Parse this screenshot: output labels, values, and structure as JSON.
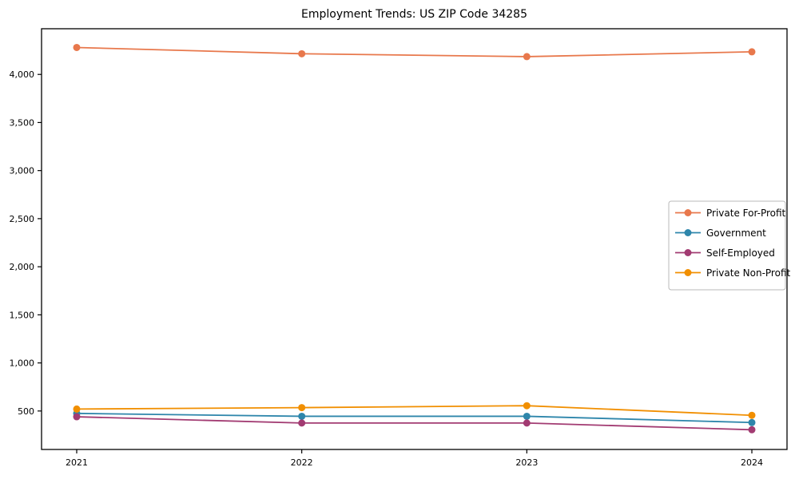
{
  "chart_data": {
    "type": "line",
    "title": "Employment Trends: US ZIP Code 34285",
    "x_labels": [
      "2021",
      "2022",
      "2023",
      "2024"
    ],
    "series": [
      {
        "name": "Private For-Profit",
        "color": "#E8784C",
        "values": [
          4280,
          4215,
          4185,
          4235
        ]
      },
      {
        "name": "Government",
        "color": "#2E86AB",
        "values": [
          475,
          445,
          445,
          380
        ]
      },
      {
        "name": "Self-Employed",
        "color": "#A23B72",
        "values": [
          440,
          375,
          375,
          305
        ]
      },
      {
        "name": "Private Non-Profit",
        "color": "#F18F01",
        "values": [
          520,
          535,
          555,
          455
        ]
      }
    ],
    "xlabel": "",
    "ylabel": "",
    "ylim": [
      100,
      4475
    ],
    "yticks": [
      500,
      1000,
      1500,
      2000,
      2500,
      3000,
      3500,
      4000
    ],
    "grid": false,
    "legend_position": "center right",
    "marker": "circle",
    "axis_color": "#000000",
    "legend_border_color": "#b9b9b9",
    "background_color": "#ffffff"
  }
}
